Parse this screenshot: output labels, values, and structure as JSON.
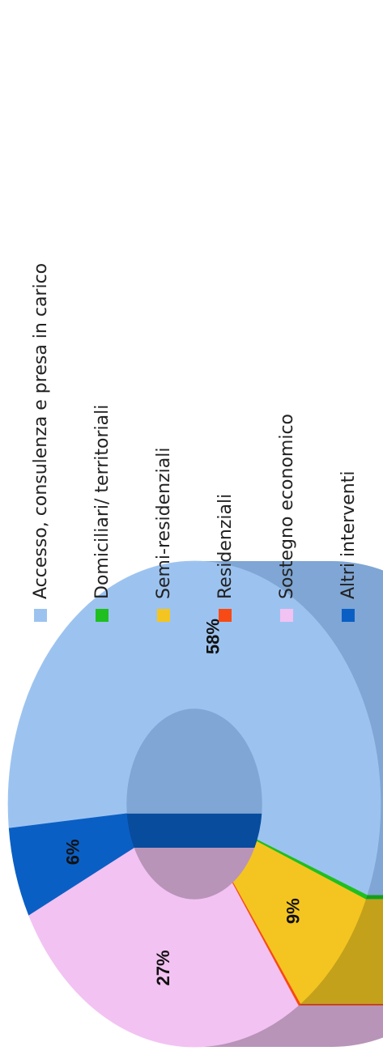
{
  "chart_data": {
    "type": "pie",
    "style": "3d-donut",
    "series": [
      {
        "label": "Accesso, consulenza e presa in carico",
        "value": 58,
        "color": "#9CC3F0",
        "side": "#7FA6D4",
        "data_label": "58%"
      },
      {
        "label": "Domiciliari/ territoriali",
        "value": 0.3,
        "color": "#1FBF1F",
        "side": "#169E16",
        "data_label": ""
      },
      {
        "label": "Semi-residenziali",
        "value": 9,
        "color": "#F4C520",
        "side": "#C4A11B",
        "data_label": "9%"
      },
      {
        "label": "Residenziali",
        "value": 0.2,
        "color": "#F84A14",
        "side": "#C23A10",
        "data_label": ""
      },
      {
        "label": "Sostegno economico",
        "value": 27,
        "color": "#F2C2F2",
        "side": "#B894B8",
        "data_label": "27%"
      },
      {
        "label": "Altri interventi",
        "value": 6,
        "color": "#0A5FC4",
        "side": "#084C9E",
        "data_label": "6%"
      }
    ],
    "legend_position": "right"
  }
}
